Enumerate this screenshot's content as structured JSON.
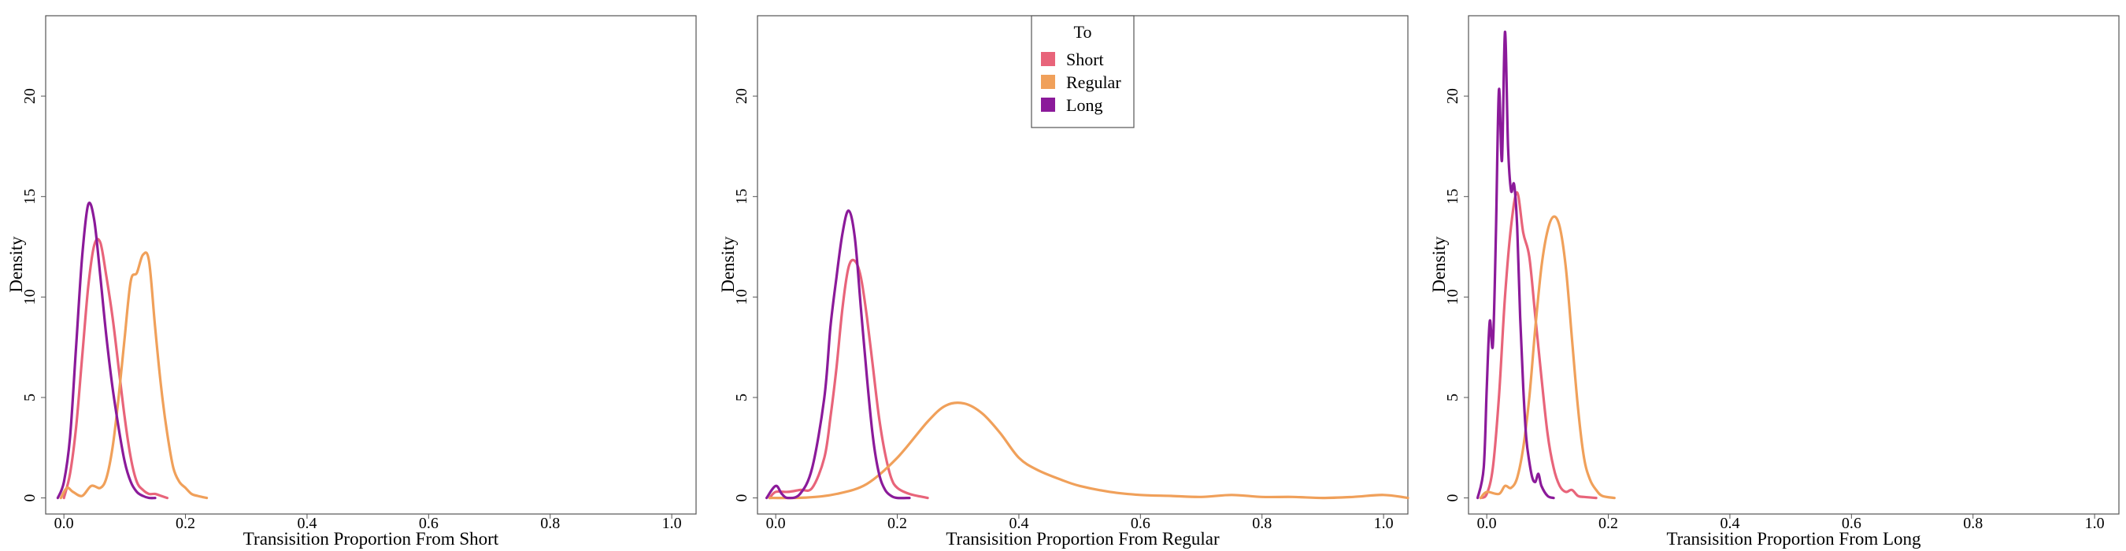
{
  "chart_data": [
    {
      "type": "line",
      "title": "",
      "xlabel": "Transisition Proportion From Short",
      "ylabel": "Density",
      "xlim": [
        -0.03,
        1.04
      ],
      "ylim": [
        -0.8,
        24
      ],
      "xticks": [
        0.0,
        0.2,
        0.4,
        0.6,
        0.8,
        1.0
      ],
      "xtick_labels": [
        "0.0",
        "0.2",
        "0.4",
        "0.6",
        "0.8",
        "1.0"
      ],
      "yticks": [
        0,
        5,
        10,
        15,
        20
      ],
      "ytick_labels": [
        "0",
        "5",
        "10",
        "15",
        "20"
      ],
      "grid": false,
      "legend": null,
      "series": [
        {
          "name": "Short",
          "color": "#E8647A",
          "x": [
            0.0,
            0.01,
            0.02,
            0.03,
            0.04,
            0.05,
            0.06,
            0.07,
            0.08,
            0.09,
            0.1,
            0.11,
            0.12,
            0.13,
            0.14,
            0.15,
            0.16,
            0.17
          ],
          "y": [
            0.0,
            1.2,
            3.5,
            7.0,
            10.5,
            12.6,
            12.7,
            11.0,
            9.0,
            6.5,
            4.0,
            2.0,
            0.8,
            0.4,
            0.2,
            0.2,
            0.1,
            0.0
          ]
        },
        {
          "name": "Regular",
          "color": "#F0A05A",
          "x": [
            -0.005,
            0.005,
            0.015,
            0.03,
            0.045,
            0.06,
            0.07,
            0.08,
            0.09,
            0.1,
            0.11,
            0.12,
            0.13,
            0.14,
            0.15,
            0.16,
            0.17,
            0.18,
            0.19,
            0.2,
            0.21,
            0.22,
            0.235
          ],
          "y": [
            0.0,
            0.5,
            0.3,
            0.1,
            0.6,
            0.5,
            1.0,
            2.5,
            5.0,
            8.0,
            10.8,
            11.2,
            12.1,
            11.8,
            8.5,
            5.5,
            3.2,
            1.5,
            0.8,
            0.5,
            0.2,
            0.1,
            0.0
          ]
        },
        {
          "name": "Long",
          "color": "#8B1A9A",
          "x": [
            -0.01,
            0.0,
            0.01,
            0.02,
            0.03,
            0.04,
            0.05,
            0.06,
            0.07,
            0.08,
            0.09,
            0.1,
            0.11,
            0.12,
            0.13,
            0.14,
            0.15
          ],
          "y": [
            0.0,
            0.8,
            3.0,
            7.5,
            12.0,
            14.6,
            13.8,
            11.0,
            8.0,
            5.5,
            3.5,
            1.8,
            0.8,
            0.3,
            0.1,
            0.0,
            0.0
          ]
        }
      ]
    },
    {
      "type": "line",
      "title": "",
      "xlabel": "Transisition Proportion From Regular",
      "ylabel": "Density",
      "xlim": [
        -0.03,
        1.04
      ],
      "ylim": [
        -0.8,
        24
      ],
      "xticks": [
        0.0,
        0.2,
        0.4,
        0.6,
        0.8,
        1.0
      ],
      "xtick_labels": [
        "0.0",
        "0.2",
        "0.4",
        "0.6",
        "0.8",
        "1.0"
      ],
      "yticks": [
        0,
        5,
        10,
        15,
        20
      ],
      "ytick_labels": [
        "0",
        "5",
        "10",
        "15",
        "20"
      ],
      "grid": false,
      "legend": {
        "title": "To",
        "position": "top-center",
        "entries": [
          "Short",
          "Regular",
          "Long"
        ]
      },
      "series": [
        {
          "name": "Short",
          "color": "#E8647A",
          "x": [
            -0.01,
            0.0,
            0.02,
            0.04,
            0.06,
            0.08,
            0.09,
            0.1,
            0.11,
            0.12,
            0.13,
            0.14,
            0.15,
            0.16,
            0.17,
            0.18,
            0.19,
            0.2,
            0.22,
            0.25
          ],
          "y": [
            0.0,
            0.3,
            0.3,
            0.4,
            0.5,
            2.0,
            4.0,
            6.5,
            9.5,
            11.5,
            11.8,
            11.0,
            9.0,
            6.5,
            4.0,
            2.2,
            1.0,
            0.5,
            0.2,
            0.0
          ]
        },
        {
          "name": "Regular",
          "color": "#F0A05A",
          "x": [
            -0.01,
            0.05,
            0.1,
            0.15,
            0.2,
            0.25,
            0.28,
            0.31,
            0.34,
            0.37,
            0.4,
            0.43,
            0.47,
            0.5,
            0.55,
            0.6,
            0.65,
            0.7,
            0.75,
            0.8,
            0.85,
            0.9,
            0.95,
            1.0,
            1.04
          ],
          "y": [
            0.0,
            0.02,
            0.2,
            0.7,
            2.0,
            3.8,
            4.6,
            4.7,
            4.2,
            3.2,
            2.0,
            1.4,
            0.9,
            0.6,
            0.3,
            0.15,
            0.1,
            0.05,
            0.15,
            0.05,
            0.05,
            0.0,
            0.05,
            0.15,
            0.0
          ]
        },
        {
          "name": "Long",
          "color": "#8B1A9A",
          "x": [
            -0.015,
            0.0,
            0.01,
            0.02,
            0.04,
            0.06,
            0.08,
            0.09,
            0.1,
            0.11,
            0.12,
            0.13,
            0.14,
            0.15,
            0.16,
            0.17,
            0.18,
            0.19,
            0.2,
            0.22
          ],
          "y": [
            0.0,
            0.6,
            0.2,
            0.0,
            0.2,
            1.5,
            5.0,
            8.5,
            11.0,
            13.2,
            14.3,
            13.0,
            9.5,
            6.0,
            3.0,
            1.2,
            0.4,
            0.1,
            0.0,
            0.0
          ]
        }
      ]
    },
    {
      "type": "line",
      "title": "",
      "xlabel": "Transisition Proportion From Long",
      "ylabel": "Density",
      "xlim": [
        -0.03,
        1.04
      ],
      "ylim": [
        -0.8,
        24
      ],
      "xticks": [
        0.0,
        0.2,
        0.4,
        0.6,
        0.8,
        1.0
      ],
      "xtick_labels": [
        "0.0",
        "0.2",
        "0.4",
        "0.6",
        "0.8",
        "1.0"
      ],
      "yticks": [
        0,
        5,
        10,
        15,
        20
      ],
      "ytick_labels": [
        "0",
        "5",
        "10",
        "15",
        "20"
      ],
      "grid": false,
      "legend": null,
      "series": [
        {
          "name": "Short",
          "color": "#E8647A",
          "x": [
            -0.01,
            0.0,
            0.01,
            0.02,
            0.03,
            0.04,
            0.05,
            0.06,
            0.07,
            0.08,
            0.09,
            0.1,
            0.11,
            0.12,
            0.13,
            0.14,
            0.15,
            0.16,
            0.18
          ],
          "y": [
            0.0,
            0.2,
            1.5,
            5.0,
            10.0,
            13.5,
            15.2,
            13.2,
            12.0,
            9.0,
            6.0,
            3.2,
            1.5,
            0.6,
            0.3,
            0.4,
            0.1,
            0.05,
            0.0
          ]
        },
        {
          "name": "Regular",
          "color": "#F0A05A",
          "x": [
            -0.01,
            0.0,
            0.02,
            0.03,
            0.04,
            0.05,
            0.06,
            0.07,
            0.08,
            0.09,
            0.1,
            0.11,
            0.12,
            0.13,
            0.14,
            0.15,
            0.16,
            0.17,
            0.18,
            0.19,
            0.21
          ],
          "y": [
            0.0,
            0.3,
            0.2,
            0.6,
            0.5,
            1.0,
            2.5,
            5.0,
            8.5,
            11.5,
            13.3,
            14.0,
            13.5,
            11.5,
            8.0,
            4.5,
            2.0,
            0.9,
            0.4,
            0.1,
            0.0
          ]
        },
        {
          "name": "Long",
          "color": "#8B1A9A",
          "x": [
            -0.015,
            -0.005,
            0.0,
            0.005,
            0.01,
            0.015,
            0.02,
            0.025,
            0.03,
            0.035,
            0.04,
            0.045,
            0.05,
            0.055,
            0.06,
            0.065,
            0.07,
            0.075,
            0.08,
            0.085,
            0.09,
            0.1,
            0.11
          ],
          "y": [
            0.0,
            1.5,
            5.5,
            8.8,
            7.6,
            13.0,
            20.3,
            16.8,
            23.2,
            17.5,
            15.3,
            15.6,
            13.5,
            9.0,
            5.5,
            3.0,
            1.8,
            1.0,
            0.8,
            1.2,
            0.6,
            0.1,
            0.0
          ]
        }
      ]
    }
  ]
}
